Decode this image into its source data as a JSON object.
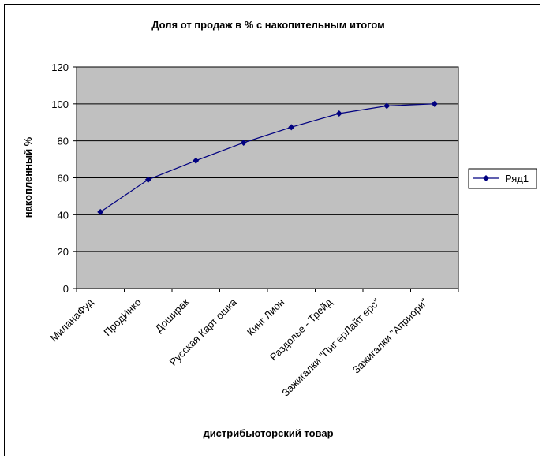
{
  "chart_data": {
    "type": "line",
    "title": "Доля от продаж в % с накопительным итогом",
    "xlabel": "дистрибьюторский товар",
    "ylabel": "накопленный %",
    "categories": [
      "МиланаФуд",
      "ПродИнко",
      "Доширак",
      "Русская Карт ошка",
      "Кинг Лион",
      "Раздолье - Трейд",
      "Зажигалки \"Пиг ерЛайт ерс\"",
      "Зажигалки \"Априори\""
    ],
    "series": [
      {
        "name": "Ряд1",
        "values": [
          41.5,
          59,
          69.3,
          79,
          87.4,
          94.8,
          98.9,
          100
        ]
      }
    ],
    "ylim": [
      0,
      120
    ],
    "yticks": [
      0,
      20,
      40,
      60,
      80,
      100,
      120
    ],
    "grid": "horizontal major",
    "legend": "right",
    "colors": {
      "series": "#000080",
      "plot_bg": "#c0c0c0",
      "grid": "#000000"
    }
  }
}
